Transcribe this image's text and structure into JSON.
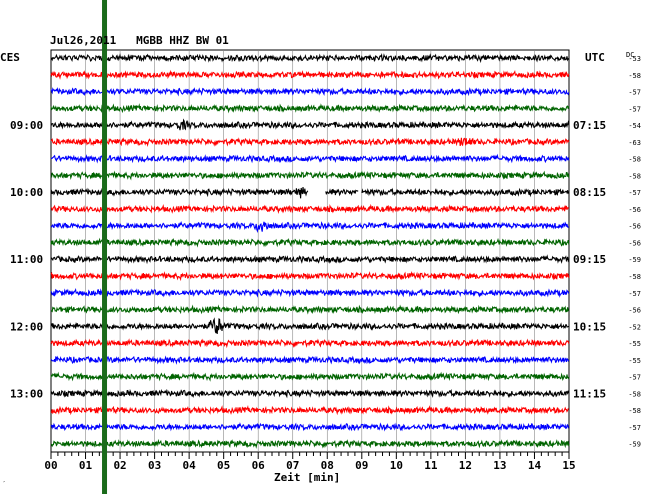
{
  "header": {
    "title": "Jul26,2011   MGBB HHZ BW 01",
    "left_zone": "CES",
    "right_zone": "UTC",
    "dc_label": "DC"
  },
  "chart_data": {
    "type": "seismogram",
    "station": "MGBB",
    "channel": "HHZ",
    "network": "BW",
    "location": "01",
    "date": "Jul26,2011",
    "xlabel": "Zeit [min]",
    "x_ticks": [
      "00",
      "01",
      "02",
      "03",
      "04",
      "05",
      "06",
      "07",
      "08",
      "09",
      "10",
      "11",
      "12",
      "13",
      "14",
      "15"
    ],
    "xlim": [
      0,
      15
    ],
    "trace_count": 24,
    "trace_minutes": 15,
    "trace_colors": [
      "#000000",
      "#ff0000",
      "#0000ff",
      "#006400"
    ],
    "left_times": [
      {
        "trace": 4,
        "label": "09:00"
      },
      {
        "trace": 8,
        "label": "10:00"
      },
      {
        "trace": 12,
        "label": "11:00"
      },
      {
        "trace": 16,
        "label": "12:00"
      },
      {
        "trace": 20,
        "label": "13:00"
      }
    ],
    "right_times": [
      {
        "trace": 4,
        "label": "07:15"
      },
      {
        "trace": 8,
        "label": "08:15"
      },
      {
        "trace": 12,
        "label": "09:15"
      },
      {
        "trace": 16,
        "label": "10:15"
      },
      {
        "trace": 20,
        "label": "11:15"
      }
    ],
    "dc_values": [
      -53,
      -58,
      -57,
      -57,
      -54,
      -63,
      -58,
      -58,
      -57,
      -56,
      -56,
      -56,
      -59,
      -58,
      -57,
      -56,
      -52,
      -55,
      -55,
      -57,
      -58,
      -58,
      -57,
      -59
    ],
    "marker": {
      "minute": 1.55,
      "color": "#1a6b1a"
    },
    "gaps": [
      {
        "trace": 8,
        "start": 7.45,
        "end": 7.95
      },
      {
        "trace": 8,
        "start": 8.9,
        "end": 9.0
      }
    ],
    "events": [
      {
        "trace": 10,
        "minute": 6.1,
        "amplitude": 2.2
      },
      {
        "trace": 16,
        "minute": 4.8,
        "amplitude": 3.5
      },
      {
        "trace": 4,
        "minute": 3.8,
        "amplitude": 1.3
      },
      {
        "trace": 5,
        "minute": 12.0,
        "amplitude": 1.6
      },
      {
        "trace": 8,
        "minute": 7.2,
        "amplitude": 1.2
      }
    ]
  },
  "footer": {
    "corner_mark": "′"
  }
}
